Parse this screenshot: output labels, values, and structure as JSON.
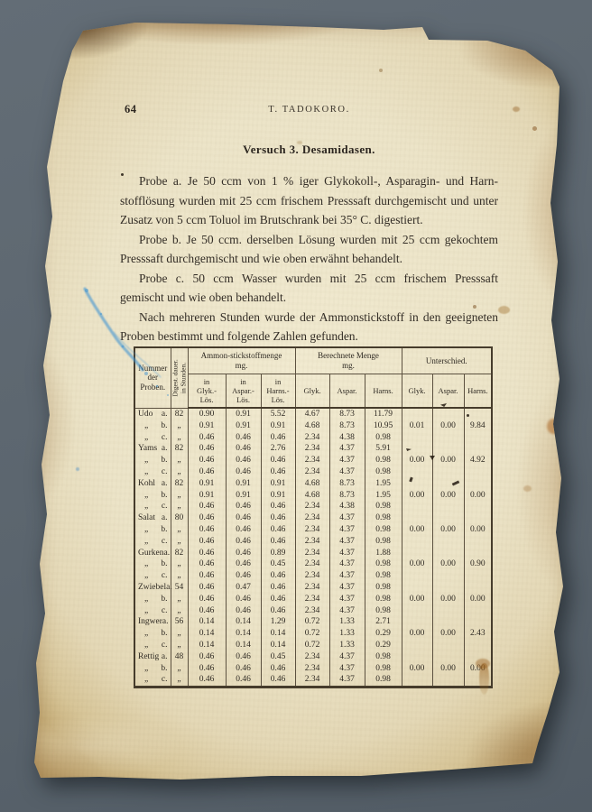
{
  "page": {
    "page_number": "64",
    "running_head": "T. TADOKORO.",
    "title": "Versuch 3.  Desamidasen.",
    "paragraphs": [
      {
        "lines": [
          "Probe a.  Je 50 ccm von 1 % iger Glykokoll-, Asparagin- und Harn-",
          "stofflösung wurden mit 25 ccm frischem Presssaft durchgemischt und unter",
          "Zusatz von 5 ccm Toluol im Brutschrank bei 35° C. digestiert."
        ]
      },
      {
        "lines": [
          "Probe b.  Je 50 ccm. derselben Lösung wurden mit 25 ccm gekochtem",
          "Presssaft durchgemischt und wie oben erwähnt behandelt."
        ]
      },
      {
        "lines": [
          "Probe c.  50 ccm Wasser wurden mit 25 ccm frischem Presssaft",
          "gemischt und wie oben behandelt."
        ]
      },
      {
        "lines": [
          "Nach mehreren Stunden wurde der Ammonstickstoff in den geeigneten",
          "Proben bestimmt und folgende Zahlen gefunden."
        ]
      }
    ]
  },
  "table": {
    "ditto_mark": "„",
    "header": {
      "proben": "Nummer der Proben.",
      "digest_lines": [
        "Digest. dauer.",
        "in Stunden."
      ],
      "col_groups": [
        {
          "title_lines": [
            "Ammon-stickstoffmenge",
            "mg."
          ],
          "subs": [
            [
              "in",
              "Glyk.-",
              "Lös."
            ],
            [
              "in",
              "Aspar.-",
              "Lös."
            ],
            [
              "in",
              "Harns.-",
              "Lös."
            ]
          ]
        },
        {
          "title_lines": [
            "Berechnete Menge",
            "mg."
          ],
          "subs": [
            [
              "Glyk."
            ],
            [
              "Aspar."
            ],
            [
              "Harns."
            ]
          ]
        },
        {
          "title_lines": [
            "Unterschied."
          ],
          "subs": [
            [
              "Glyk."
            ],
            [
              "Aspar."
            ],
            [
              "Harns."
            ]
          ]
        }
      ]
    },
    "groups": [
      {
        "name": "Udo",
        "digest": "82",
        "unterschied": [
          "0.01",
          "0.00",
          "9.84"
        ],
        "rows": [
          {
            "probe": "a.",
            "ammon": [
              "0.90",
              "0.91",
              "5.52"
            ],
            "berechnet": [
              "4.67",
              "8.73",
              "11.79"
            ]
          },
          {
            "probe": "b.",
            "ammon": [
              "0.91",
              "0.91",
              "0.91"
            ],
            "berechnet": [
              "4.68",
              "8.73",
              "10.95"
            ]
          },
          {
            "probe": "c.",
            "ammon": [
              "0.46",
              "0.46",
              "0.46"
            ],
            "berechnet": [
              "2.34",
              "4.38",
              "0.98"
            ]
          }
        ]
      },
      {
        "name": "Yams",
        "digest": "82",
        "unterschied": [
          "0.00",
          "0.00",
          "4.92"
        ],
        "rows": [
          {
            "probe": "a.",
            "ammon": [
              "0.46",
              "0.46",
              "2.76"
            ],
            "berechnet": [
              "2.34",
              "4.37",
              "5.91"
            ]
          },
          {
            "probe": "b.",
            "ammon": [
              "0.46",
              "0.46",
              "0.46"
            ],
            "berechnet": [
              "2.34",
              "4.37",
              "0.98"
            ]
          },
          {
            "probe": "c.",
            "ammon": [
              "0.46",
              "0.46",
              "0.46"
            ],
            "berechnet": [
              "2.34",
              "4.37",
              "0.98"
            ]
          }
        ]
      },
      {
        "name": "Kohl",
        "digest": "82",
        "unterschied": [
          "0.00",
          "0.00",
          "0.00"
        ],
        "rows": [
          {
            "probe": "a.",
            "ammon": [
              "0.91",
              "0.91",
              "0.91"
            ],
            "berechnet": [
              "4.68",
              "8.73",
              "1.95"
            ]
          },
          {
            "probe": "b.",
            "ammon": [
              "0.91",
              "0.91",
              "0.91"
            ],
            "berechnet": [
              "4.68",
              "8.73",
              "1.95"
            ]
          },
          {
            "probe": "c.",
            "ammon": [
              "0.46",
              "0.46",
              "0.46"
            ],
            "berechnet": [
              "2.34",
              "4.38",
              "0.98"
            ]
          }
        ]
      },
      {
        "name": "Salat",
        "digest": "80",
        "unterschied": [
          "0.00",
          "0.00",
          "0.00"
        ],
        "rows": [
          {
            "probe": "a.",
            "ammon": [
              "0.46",
              "0.46",
              "0.46"
            ],
            "berechnet": [
              "2.34",
              "4.37",
              "0.98"
            ]
          },
          {
            "probe": "b.",
            "ammon": [
              "0.46",
              "0.46",
              "0.46"
            ],
            "berechnet": [
              "2.34",
              "4.37",
              "0.98"
            ]
          },
          {
            "probe": "c.",
            "ammon": [
              "0.46",
              "0.46",
              "0.46"
            ],
            "berechnet": [
              "2.34",
              "4.37",
              "0.98"
            ]
          }
        ]
      },
      {
        "name": "Gurken",
        "digest": "82",
        "unterschied": [
          "0.00",
          "0.00",
          "0.90"
        ],
        "rows": [
          {
            "probe": "a.",
            "ammon": [
              "0.46",
              "0.46",
              "0.89"
            ],
            "berechnet": [
              "2.34",
              "4.37",
              "1.88"
            ]
          },
          {
            "probe": "b.",
            "ammon": [
              "0.46",
              "0.46",
              "0.45"
            ],
            "berechnet": [
              "2.34",
              "4.37",
              "0.98"
            ]
          },
          {
            "probe": "c.",
            "ammon": [
              "0.46",
              "0.46",
              "0.46"
            ],
            "berechnet": [
              "2.34",
              "4.37",
              "0.98"
            ]
          }
        ]
      },
      {
        "name": "Zwiebel",
        "digest": "54",
        "unterschied": [
          "0.00",
          "0.00",
          "0.00"
        ],
        "rows": [
          {
            "probe": "a.",
            "ammon": [
              "0.46",
              "0.47",
              "0.46"
            ],
            "berechnet": [
              "2.34",
              "4.37",
              "0.98"
            ]
          },
          {
            "probe": "b.",
            "ammon": [
              "0.46",
              "0.46",
              "0.46"
            ],
            "berechnet": [
              "2.34",
              "4.37",
              "0.98"
            ]
          },
          {
            "probe": "c.",
            "ammon": [
              "0.46",
              "0.46",
              "0.46"
            ],
            "berechnet": [
              "2.34",
              "4.37",
              "0.98"
            ]
          }
        ]
      },
      {
        "name": "Ingwer",
        "digest": "56",
        "unterschied": [
          "0.00",
          "0.00",
          "2.43"
        ],
        "rows": [
          {
            "probe": "a.",
            "ammon": [
              "0.14",
              "0.14",
              "1.29"
            ],
            "berechnet": [
              "0.72",
              "1.33",
              "2.71"
            ]
          },
          {
            "probe": "b.",
            "ammon": [
              "0.14",
              "0.14",
              "0.14"
            ],
            "berechnet": [
              "0.72",
              "1.33",
              "0.29"
            ]
          },
          {
            "probe": "c.",
            "ammon": [
              "0.14",
              "0.14",
              "0.14"
            ],
            "berechnet": [
              "0.72",
              "1.33",
              "0.29"
            ]
          }
        ]
      },
      {
        "name": "Rettig",
        "digest": "48",
        "unterschied": [
          "0.00",
          "0.00",
          "0.00"
        ],
        "rows": [
          {
            "probe": "a.",
            "ammon": [
              "0.46",
              "0.46",
              "0.45"
            ],
            "berechnet": [
              "2.34",
              "4.37",
              "0.98"
            ]
          },
          {
            "probe": "b.",
            "ammon": [
              "0.46",
              "0.46",
              "0.46"
            ],
            "berechnet": [
              "2.34",
              "4.37",
              "0.98"
            ]
          },
          {
            "probe": "c.",
            "ammon": [
              "0.46",
              "0.46",
              "0.46"
            ],
            "berechnet": [
              "2.34",
              "4.37",
              "0.98"
            ]
          }
        ]
      }
    ]
  },
  "colors": {
    "background": "#5b656e",
    "paper": "#ece4c8",
    "ink": "#332d26",
    "burnt_edge": "#6e4418",
    "blue_ink": "#3f93d2"
  }
}
